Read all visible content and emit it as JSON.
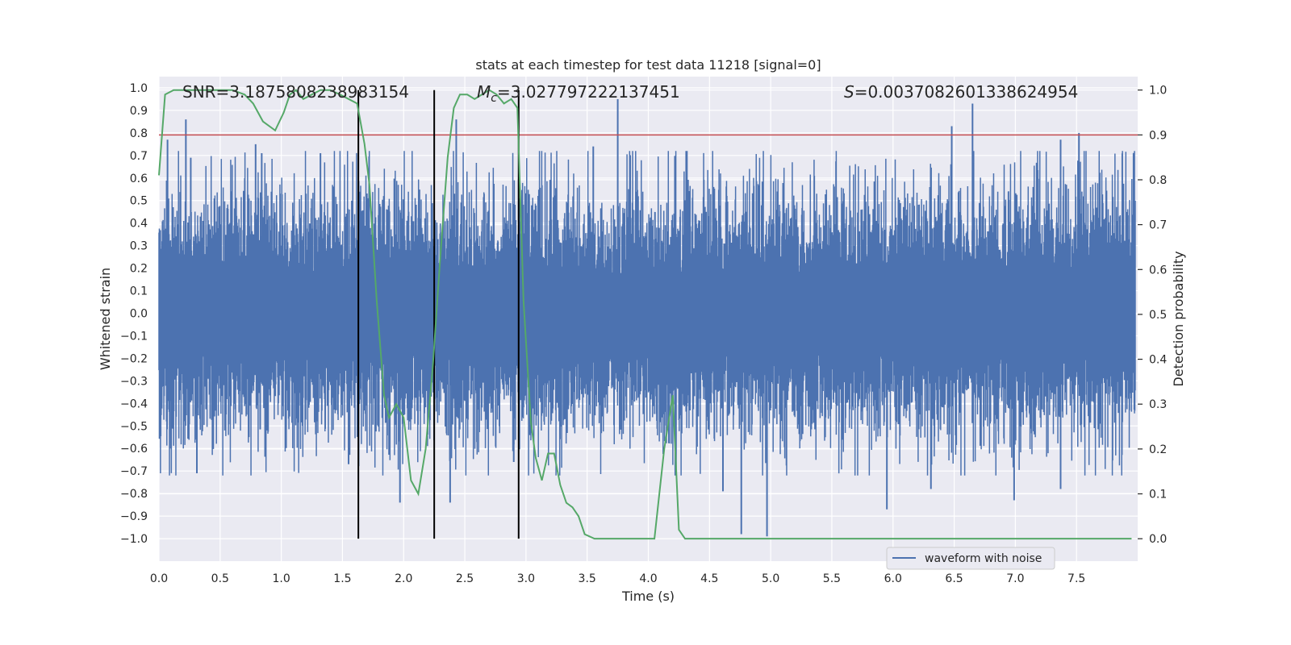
{
  "chart_data": {
    "type": "line",
    "title": "stats at each timestep for test data 11218 [signal=0]",
    "xlabel": "Time (s)",
    "ylabel": "Whitened strain",
    "y2label": "Detection probability",
    "xlim": [
      0.0,
      8.0
    ],
    "ylim": [
      -1.1,
      1.05
    ],
    "y2lim": [
      -0.05,
      1.03
    ],
    "xticks": [
      "0.0",
      "0.5",
      "1.0",
      "1.5",
      "2.0",
      "2.5",
      "3.0",
      "3.5",
      "4.0",
      "4.5",
      "5.0",
      "5.5",
      "6.0",
      "6.5",
      "7.0",
      "7.5"
    ],
    "xtick_values": [
      0.0,
      0.5,
      1.0,
      1.5,
      2.0,
      2.5,
      3.0,
      3.5,
      4.0,
      4.5,
      5.0,
      5.5,
      6.0,
      6.5,
      7.0,
      7.5
    ],
    "yticks": [
      "1.0",
      "0.9",
      "0.8",
      "0.7",
      "0.6",
      "0.5",
      "0.4",
      "0.3",
      "0.2",
      "0.1",
      "0.0",
      "−0.1",
      "−0.2",
      "−0.3",
      "−0.4",
      "−0.5",
      "−0.6",
      "−0.7",
      "−0.8",
      "−0.9",
      "−1.0"
    ],
    "ytick_values": [
      1.0,
      0.9,
      0.8,
      0.7,
      0.6,
      0.5,
      0.4,
      0.3,
      0.2,
      0.1,
      0.0,
      -0.1,
      -0.2,
      -0.3,
      -0.4,
      -0.5,
      -0.6,
      -0.7,
      -0.8,
      -0.9,
      -1.0
    ],
    "y2ticks": [
      "1.0",
      "0.9",
      "0.8",
      "0.7",
      "0.6",
      "0.5",
      "0.4",
      "0.3",
      "0.2",
      "0.1",
      "0.0"
    ],
    "y2tick_values": [
      1.0,
      0.9,
      0.8,
      0.7,
      0.6,
      0.5,
      0.4,
      0.3,
      0.2,
      0.1,
      0.0
    ],
    "grid": true,
    "annotations": {
      "snr": "SNR=3.1875808238983154",
      "mc_symbol": "M",
      "mc_sub": "c",
      "mc_value": "=3.027797222137451",
      "s_symbol": "S",
      "s_value": "=0.0037082601338624954"
    },
    "legend": {
      "placement": "lower-right",
      "entries": [
        "waveform with noise"
      ]
    },
    "threshold": {
      "axis": "y2",
      "value": 0.9,
      "color": "#c44e52"
    },
    "vertical_lines": {
      "x": [
        1.63,
        2.25,
        2.94
      ],
      "y2_range": [
        0.0,
        1.0
      ],
      "color": "#000000"
    },
    "series": [
      {
        "name": "waveform with noise",
        "axis": "y",
        "color": "#4c72b0",
        "kind": "dense-noise",
        "spikes": [
          {
            "x": 0.07,
            "y": 0.77
          },
          {
            "x": 0.22,
            "y": 0.86
          },
          {
            "x": 0.26,
            "y": 0.69
          },
          {
            "x": 0.79,
            "y": 0.75
          },
          {
            "x": 0.84,
            "y": 0.71
          },
          {
            "x": 1.32,
            "y": 0.71
          },
          {
            "x": 2.43,
            "y": 0.86
          },
          {
            "x": 3.75,
            "y": 0.95
          },
          {
            "x": 3.55,
            "y": 0.74
          },
          {
            "x": 6.48,
            "y": 0.83
          },
          {
            "x": 6.65,
            "y": 0.93
          },
          {
            "x": 7.37,
            "y": 0.77
          },
          {
            "x": 7.52,
            "y": 0.8
          },
          {
            "x": 0.09,
            "y": -0.6
          },
          {
            "x": 0.31,
            "y": -0.71
          },
          {
            "x": 1.55,
            "y": -0.67
          },
          {
            "x": 1.97,
            "y": -0.84
          },
          {
            "x": 2.38,
            "y": -0.84
          },
          {
            "x": 2.9,
            "y": -0.66
          },
          {
            "x": 4.61,
            "y": -0.79
          },
          {
            "x": 4.76,
            "y": -0.98
          },
          {
            "x": 4.97,
            "y": -0.99
          },
          {
            "x": 5.95,
            "y": -0.87
          },
          {
            "x": 6.31,
            "y": -0.78
          },
          {
            "x": 6.99,
            "y": -0.83
          },
          {
            "x": 7.37,
            "y": -0.78
          }
        ]
      },
      {
        "name": "",
        "axis": "y2",
        "color": "#55a868",
        "x": [
          0.0,
          0.05,
          0.12,
          0.2,
          0.3,
          0.4,
          0.5,
          0.6,
          0.7,
          0.77,
          0.85,
          0.95,
          1.02,
          1.07,
          1.12,
          1.18,
          1.25,
          1.32,
          1.4,
          1.48,
          1.55,
          1.62,
          1.68,
          1.72,
          1.78,
          1.84,
          1.88,
          1.94,
          2.0,
          2.06,
          2.12,
          2.18,
          2.24,
          2.3,
          2.36,
          2.41,
          2.46,
          2.52,
          2.58,
          2.64,
          2.7,
          2.76,
          2.82,
          2.88,
          2.93,
          2.98,
          3.04,
          3.08,
          3.13,
          3.18,
          3.23,
          3.28,
          3.33,
          3.38,
          3.43,
          3.48,
          3.56,
          3.66,
          3.78,
          3.9,
          4.0,
          4.05,
          4.13,
          4.2,
          4.25,
          4.3,
          4.38,
          4.5,
          4.7,
          5.0,
          5.3,
          5.6,
          5.8,
          6.0,
          6.3,
          6.6,
          6.9,
          7.2,
          7.5,
          7.8,
          7.95
        ],
        "y": [
          0.81,
          0.99,
          1.0,
          1.0,
          1.0,
          1.0,
          1.0,
          1.0,
          0.99,
          0.97,
          0.93,
          0.91,
          0.95,
          0.99,
          1.0,
          0.98,
          0.99,
          1.0,
          1.0,
          0.99,
          0.98,
          0.97,
          0.88,
          0.79,
          0.53,
          0.32,
          0.27,
          0.3,
          0.27,
          0.13,
          0.1,
          0.2,
          0.39,
          0.63,
          0.85,
          0.96,
          0.99,
          0.99,
          0.98,
          0.99,
          1.0,
          0.99,
          0.97,
          0.98,
          0.96,
          0.53,
          0.26,
          0.18,
          0.13,
          0.19,
          0.19,
          0.12,
          0.08,
          0.07,
          0.05,
          0.01,
          0.0,
          0.0,
          0.0,
          0.0,
          0.0,
          0.0,
          0.2,
          0.32,
          0.02,
          0.0,
          0.0,
          0.0,
          0.0,
          0.0,
          0.0,
          0.0,
          0.0,
          0.0,
          0.0,
          0.0,
          0.0,
          0.0,
          0.0,
          0.0,
          0.0
        ]
      }
    ]
  }
}
